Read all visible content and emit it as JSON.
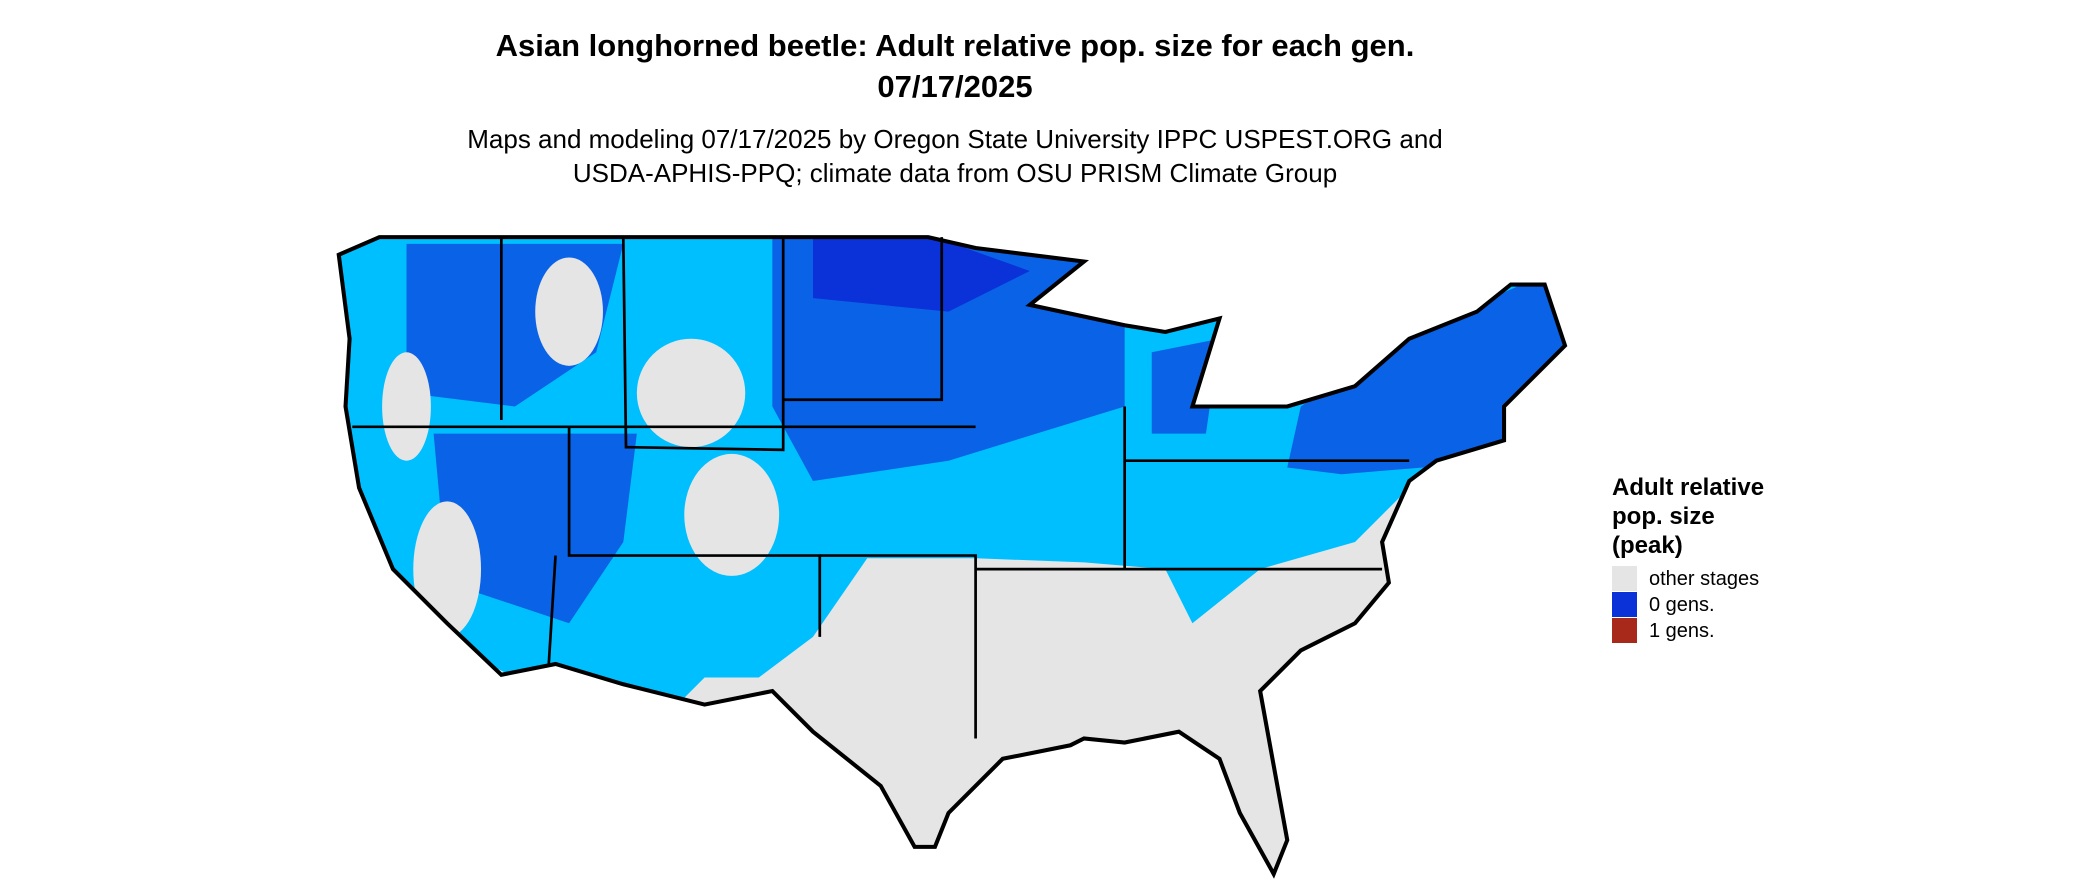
{
  "title": [
    "Asian longhorned beetle: Adult relative pop. size for each gen.",
    "07/17/2025"
  ],
  "subtitle": [
    "Maps and modeling 07/17/2025 by Oregon State University IPPC USPEST.ORG and",
    "USDA-APHIS-PPQ; climate data from OSU PRISM Climate Group"
  ],
  "legend": {
    "title": [
      "Adult relative",
      "pop. size",
      "(peak)"
    ],
    "items": [
      {
        "label": "other stages",
        "color": "#e5e5e5"
      },
      {
        "label": "0 gens.",
        "color": "#0a32d8"
      },
      {
        "label": "1 gens.",
        "color": "#a8281a"
      }
    ]
  }
}
